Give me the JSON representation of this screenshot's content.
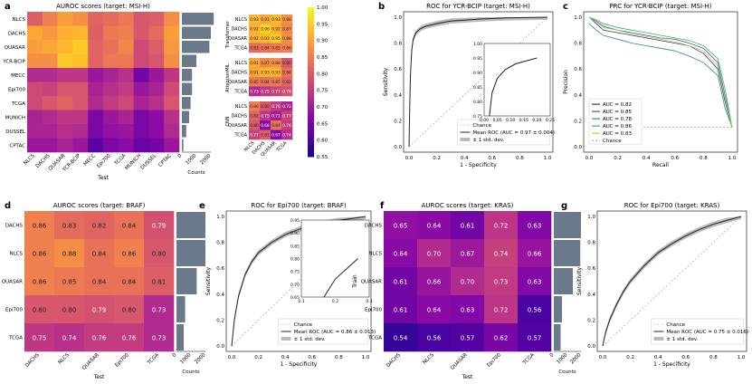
{
  "panel_letters": [
    "a",
    "b",
    "c",
    "d",
    "e",
    "f",
    "g"
  ],
  "chart_data": [
    {
      "id": "a",
      "type": "heatmap",
      "title": "AUROC scores (target: MSI-H)",
      "xlabel": "Test",
      "ylabel": "Train",
      "x_categories": [
        "NLCS",
        "DACHS",
        "QUASAR",
        "YCR-BCIP",
        "MECC",
        "Epi700",
        "TCGA",
        "MUNICH",
        "DUSSEL",
        "CPTAC"
      ],
      "y_categories": [
        "NLCS",
        "DACHS",
        "QUASAR",
        "YCR-BCIP",
        "MECC",
        "Epi700",
        "TCGA",
        "MUNICH",
        "DUSSEL",
        "CPTAC"
      ],
      "values": [
        [
          0.81,
          0.86,
          0.9,
          0.88,
          0.82,
          0.83,
          0.85,
          0.8,
          0.81,
          0.88
        ],
        [
          0.91,
          0.89,
          0.92,
          0.93,
          0.81,
          0.85,
          0.86,
          0.8,
          0.83,
          0.9
        ],
        [
          0.9,
          0.91,
          0.93,
          0.95,
          0.82,
          0.84,
          0.87,
          0.78,
          0.81,
          0.89
        ],
        [
          0.88,
          0.88,
          0.95,
          0.94,
          0.82,
          0.85,
          0.85,
          0.78,
          0.8,
          0.88
        ],
        [
          0.73,
          0.73,
          0.75,
          0.75,
          0.7,
          0.72,
          0.74,
          0.65,
          0.7,
          0.75
        ],
        [
          0.78,
          0.77,
          0.8,
          0.8,
          0.72,
          0.74,
          0.76,
          0.7,
          0.72,
          0.78
        ],
        [
          0.78,
          0.8,
          0.82,
          0.8,
          0.73,
          0.76,
          0.78,
          0.72,
          0.74,
          0.8
        ],
        [
          0.72,
          0.73,
          0.75,
          0.75,
          0.66,
          0.7,
          0.72,
          0.66,
          0.68,
          0.74
        ],
        [
          0.72,
          0.72,
          0.74,
          0.73,
          0.66,
          0.69,
          0.7,
          0.66,
          0.68,
          0.73
        ],
        [
          0.7,
          0.7,
          0.72,
          0.7,
          0.62,
          0.66,
          0.68,
          0.64,
          0.65,
          0.7
        ]
      ],
      "counts_label": "Counts",
      "counts_ticks": [
        "0",
        "1000",
        "2000"
      ],
      "counts_max": 2000,
      "counts": [
        2200,
        2000,
        1900,
        1000,
        700,
        700,
        600,
        500,
        300,
        100
      ]
    },
    {
      "id": "a2",
      "type": "heatmap",
      "row_groups": [
        "Transformer",
        "AttentionMIL",
        "CNN"
      ],
      "x_categories": [
        "NLCS",
        "DACHS",
        "QUASAR",
        "TCGA"
      ],
      "y_categories": [
        "NLCS",
        "DACHS",
        "QUASAR",
        "TCGA"
      ],
      "values_text": [
        [
          [
            "0.93",
            "0.91",
            "0.93",
            "0.88"
          ],
          [
            "0.92",
            "0.96",
            "0.92",
            "0.87"
          ],
          [
            "0.92",
            "0.93",
            "0.95",
            "0.88"
          ],
          [
            "0.83",
            "0.84",
            "0.85",
            "0.86"
          ]
        ],
        [
          [
            "0.91",
            "0.87",
            "0.88",
            "0.80"
          ],
          [
            "0.91",
            "0.93",
            "0.93",
            "0.84"
          ],
          [
            "0.85",
            "0.84",
            "0.85",
            "0.82"
          ],
          [
            "0.73",
            "0.75",
            "0.77",
            "0.79"
          ]
        ],
        [
          [
            "0.86",
            "0.80",
            "0.76",
            "0.72"
          ],
          [
            "0.82",
            "0.75",
            "0.71",
            "0.77"
          ],
          [
            "0.80",
            "0.68",
            "0.84",
            "0.76"
          ],
          [
            "0.77",
            "0.81",
            "0.67",
            "0.74"
          ]
        ]
      ],
      "colorbar_ticks": [
        "1.00",
        "0.95",
        "0.90",
        "0.85",
        "0.80",
        "0.75",
        "0.70",
        "0.65",
        "0.60",
        "0.55"
      ],
      "colorbar_range": [
        0.55,
        1.0
      ]
    },
    {
      "id": "b",
      "type": "line",
      "title": "ROC for YCR-BCIP (target: MSI-H)",
      "xlabel": "1 - Specificity",
      "ylabel": "Sensitivity",
      "xlim": [
        0,
        1
      ],
      "ylim": [
        0,
        1
      ],
      "ticks": [
        "0.0",
        "0.2",
        "0.4",
        "0.6",
        "0.8",
        "1.0"
      ],
      "legend": [
        "Chance",
        "Mean ROC (AUC = 0.97 ± 0.004)",
        "± 1 std. dev."
      ],
      "mean_roc": {
        "x": [
          0,
          0.005,
          0.01,
          0.02,
          0.03,
          0.05,
          0.08,
          0.12,
          0.2,
          0.3,
          0.5,
          0.7,
          1.0
        ],
        "y": [
          0,
          0.3,
          0.55,
          0.75,
          0.83,
          0.88,
          0.91,
          0.93,
          0.95,
          0.97,
          0.985,
          0.995,
          1.0
        ]
      },
      "inset": {
        "xlim": [
          0,
          0.25
        ],
        "ylim": [
          0.75,
          1.0
        ],
        "xticks": [
          "0.00",
          "0.05",
          "0.10",
          "0.15",
          "0.20",
          "0.25"
        ],
        "yticks": [
          "0.75",
          "0.80",
          "0.85",
          "0.90",
          "0.95",
          "1.00"
        ]
      }
    },
    {
      "id": "c",
      "type": "line",
      "title": "PRC for YCR-BCIP (target: MSI-H)",
      "xlabel": "Recall",
      "ylabel": "Precision",
      "ticks": [
        "0.0",
        "0.2",
        "0.4",
        "0.6",
        "0.8",
        "1.0"
      ],
      "series": [
        {
          "name": "AUC = 0.82",
          "color": "#4b2a86",
          "x": [
            0,
            0.05,
            0.1,
            0.2,
            0.3,
            0.4,
            0.5,
            0.6,
            0.7,
            0.8,
            0.9,
            0.95,
            1.0
          ],
          "y": [
            1.0,
            0.95,
            0.9,
            0.88,
            0.86,
            0.84,
            0.82,
            0.8,
            0.78,
            0.72,
            0.6,
            0.35,
            0.15
          ]
        },
        {
          "name": "AUC = 0.85",
          "color": "#3e5b9b",
          "x": [
            0,
            0.05,
            0.1,
            0.2,
            0.3,
            0.4,
            0.5,
            0.6,
            0.7,
            0.8,
            0.9,
            0.95,
            1.0
          ],
          "y": [
            1.0,
            0.97,
            0.93,
            0.9,
            0.88,
            0.86,
            0.84,
            0.83,
            0.8,
            0.76,
            0.65,
            0.4,
            0.15
          ]
        },
        {
          "name": "AUC = 0.78",
          "color": "#2f8a8a",
          "x": [
            0,
            0.05,
            0.1,
            0.2,
            0.3,
            0.4,
            0.5,
            0.6,
            0.7,
            0.8,
            0.9,
            0.95,
            1.0
          ],
          "y": [
            0.95,
            0.9,
            0.86,
            0.83,
            0.8,
            0.78,
            0.76,
            0.74,
            0.7,
            0.65,
            0.55,
            0.3,
            0.15
          ]
        },
        {
          "name": "AUC = 0.86",
          "color": "#3fae5c",
          "x": [
            0,
            0.05,
            0.1,
            0.2,
            0.3,
            0.4,
            0.5,
            0.6,
            0.7,
            0.8,
            0.9,
            0.95,
            1.0
          ],
          "y": [
            1.0,
            0.98,
            0.95,
            0.92,
            0.9,
            0.88,
            0.86,
            0.84,
            0.82,
            0.78,
            0.68,
            0.45,
            0.15
          ]
        },
        {
          "name": "AUC = 0.83",
          "color": "#a8d948",
          "x": [
            0,
            0.05,
            0.1,
            0.2,
            0.3,
            0.4,
            0.5,
            0.6,
            0.7,
            0.8,
            0.9,
            0.95,
            1.0
          ],
          "y": [
            1.0,
            0.96,
            0.92,
            0.9,
            0.87,
            0.85,
            0.83,
            0.81,
            0.78,
            0.74,
            0.62,
            0.38,
            0.15
          ]
        }
      ],
      "chance": 0.15,
      "chance_label": "Chance"
    },
    {
      "id": "d",
      "type": "heatmap",
      "title": "AUROC scores (target: BRAF)",
      "xlabel": "Test",
      "ylabel": "Train",
      "x_categories": [
        "DACHS",
        "NLCS",
        "QUASAR",
        "Epi700",
        "TCGA"
      ],
      "y_categories": [
        "DACHS",
        "NLCS",
        "QUASAR",
        "Epi700",
        "TCGA"
      ],
      "values": [
        [
          0.86,
          0.83,
          0.82,
          0.84,
          0.79
        ],
        [
          0.86,
          0.88,
          0.84,
          0.86,
          0.8
        ],
        [
          0.86,
          0.85,
          0.84,
          0.84,
          0.81
        ],
        [
          0.8,
          0.8,
          0.79,
          0.8,
          0.73
        ],
        [
          0.75,
          0.74,
          0.76,
          0.76,
          0.73
        ]
      ],
      "counts_label": "Counts",
      "counts_ticks": [
        "0",
        "1000",
        "2000"
      ],
      "counts_max": 2000,
      "counts": [
        2000,
        2000,
        1400,
        600,
        500
      ]
    },
    {
      "id": "e",
      "type": "line",
      "title": "ROC for Epi700 (target: BRAF)",
      "xlabel": "1 - Specificity",
      "ylabel": "Sensitivity",
      "ticks": [
        "0.0",
        "0.2",
        "0.4",
        "0.6",
        "0.8",
        "1.0"
      ],
      "legend": [
        "Chance",
        "Mean ROC (AUC = 0.86 ± 0.013)",
        "± 1 std. dev."
      ],
      "mean_roc": {
        "x": [
          0,
          0.02,
          0.05,
          0.1,
          0.15,
          0.2,
          0.3,
          0.4,
          0.5,
          0.6,
          0.8,
          1.0
        ],
        "y": [
          0,
          0.2,
          0.38,
          0.55,
          0.65,
          0.72,
          0.8,
          0.86,
          0.9,
          0.93,
          0.97,
          1.0
        ]
      },
      "inset": {
        "xlim": [
          0.05,
          0.35
        ],
        "ylim": [
          0.65,
          0.95
        ],
        "xticks": [
          "0.1",
          "0.2",
          "0.3"
        ],
        "yticks": [
          "0.65",
          "0.70",
          "0.75",
          "0.80",
          "0.85",
          "0.90",
          "0.95"
        ]
      }
    },
    {
      "id": "f",
      "type": "heatmap",
      "title": "AUROC scores (target: KRAS)",
      "xlabel": "Test",
      "ylabel": "Train",
      "x_categories": [
        "DACHS",
        "NLCS",
        "QUASAR",
        "Epi700",
        "TCGA"
      ],
      "y_categories": [
        "DACHS",
        "NLCS",
        "QUASAR",
        "Epi700",
        "TCGA"
      ],
      "values": [
        [
          0.65,
          0.64,
          0.61,
          0.72,
          0.63
        ],
        [
          0.64,
          0.7,
          0.67,
          0.74,
          0.66
        ],
        [
          0.61,
          0.66,
          0.7,
          0.73,
          0.63
        ],
        [
          0.61,
          0.64,
          0.63,
          0.72,
          0.56
        ],
        [
          0.54,
          0.56,
          0.57,
          0.62,
          0.57
        ]
      ],
      "counts_label": "Counts",
      "counts_ticks": [
        "0",
        "1000",
        "2000"
      ],
      "counts_max": 2000,
      "counts": [
        2000,
        1950,
        1400,
        600,
        500
      ]
    },
    {
      "id": "g",
      "type": "line",
      "title": "ROC for Epi700 (target: KRAS)",
      "xlabel": "1 - Specificity",
      "ylabel": "Sensitivity",
      "ticks": [
        "0.0",
        "0.2",
        "0.4",
        "0.6",
        "0.8",
        "1.0"
      ],
      "legend": [
        "Chance",
        "Mean ROC (AUC = 0.75 ± 0.016)",
        "± 1 std. dev."
      ],
      "mean_roc": {
        "x": [
          0,
          0.02,
          0.05,
          0.1,
          0.15,
          0.2,
          0.3,
          0.4,
          0.5,
          0.6,
          0.7,
          0.8,
          0.9,
          1.0
        ],
        "y": [
          0,
          0.1,
          0.2,
          0.32,
          0.42,
          0.5,
          0.62,
          0.72,
          0.79,
          0.85,
          0.9,
          0.94,
          0.97,
          1.0
        ]
      }
    }
  ]
}
